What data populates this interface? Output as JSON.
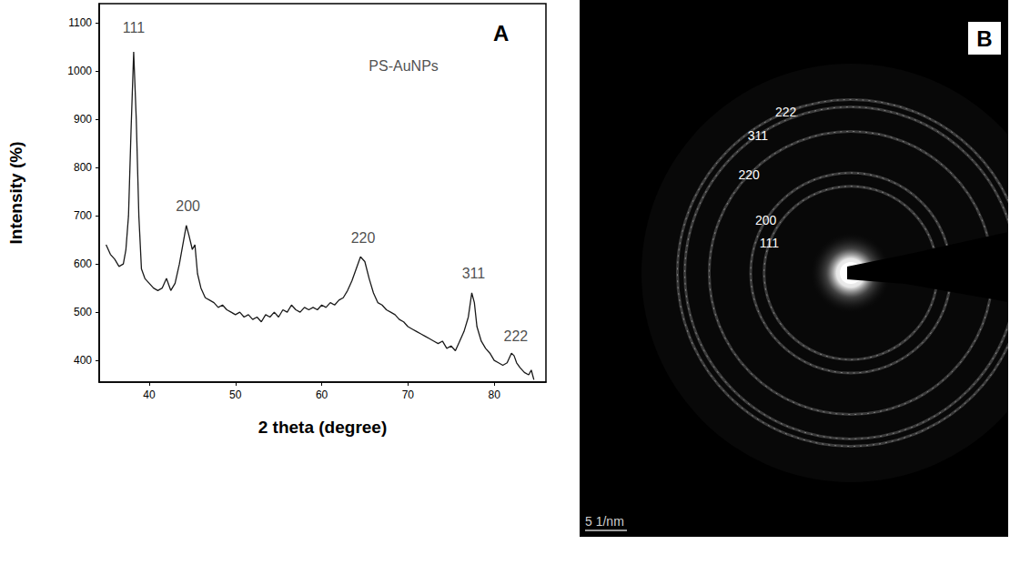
{
  "chart_data": {
    "type": "line",
    "panel_label": "A",
    "x_label": "2 theta (degree)",
    "y_label": "Intensity (%)",
    "x": [
      35,
      35.5,
      36,
      36.5,
      37,
      37.3,
      37.6,
      37.9,
      38.2,
      38.5,
      38.8,
      39.1,
      39.5,
      40,
      40.5,
      41,
      41.5,
      42,
      42.5,
      43,
      43.5,
      44,
      44.3,
      44.6,
      45,
      45.3,
      45.6,
      46,
      46.5,
      47,
      47.5,
      48,
      48.5,
      49,
      49.5,
      50,
      50.5,
      51,
      51.5,
      52,
      52.5,
      53,
      53.5,
      54,
      54.5,
      55,
      55.5,
      56,
      56.5,
      57,
      57.5,
      58,
      58.5,
      59,
      59.5,
      60,
      60.5,
      61,
      61.5,
      62,
      62.5,
      63,
      63.5,
      64,
      64.5,
      65,
      65.5,
      66,
      66.5,
      67,
      67.5,
      68,
      68.5,
      69,
      69.5,
      70,
      70.5,
      71,
      71.5,
      72,
      72.5,
      73,
      73.5,
      74,
      74.5,
      75,
      75.5,
      76,
      76.5,
      77,
      77.4,
      77.7,
      78,
      78.5,
      79,
      79.5,
      80,
      80.5,
      81,
      81.5,
      82,
      82.3,
      82.6,
      83,
      83.5,
      84,
      84.3,
      84.6
    ],
    "values": [
      640,
      620,
      610,
      595,
      600,
      630,
      700,
      880,
      1040,
      900,
      700,
      590,
      570,
      560,
      550,
      545,
      550,
      570,
      545,
      560,
      600,
      650,
      680,
      660,
      630,
      640,
      580,
      550,
      530,
      525,
      520,
      510,
      515,
      505,
      500,
      495,
      500,
      490,
      495,
      485,
      490,
      480,
      495,
      490,
      500,
      490,
      505,
      500,
      515,
      505,
      500,
      510,
      505,
      510,
      505,
      515,
      510,
      520,
      515,
      525,
      530,
      545,
      565,
      590,
      615,
      605,
      570,
      540,
      520,
      515,
      505,
      500,
      495,
      485,
      480,
      470,
      465,
      460,
      455,
      450,
      445,
      440,
      435,
      440,
      425,
      430,
      420,
      440,
      460,
      490,
      540,
      520,
      470,
      440,
      425,
      415,
      400,
      395,
      390,
      395,
      415,
      410,
      395,
      385,
      375,
      370,
      380,
      360
    ],
    "color": "#1a1a1a",
    "xlim": [
      34.2,
      86
    ],
    "xticks": [
      40,
      50,
      60,
      70,
      80
    ],
    "ylim": [
      355,
      1140
    ],
    "yticks": [
      400,
      500,
      600,
      700,
      800,
      900,
      1000,
      1100
    ],
    "grid": false,
    "annotations": [
      {
        "text": "PS-AuNPs",
        "x": 69.5,
        "y": 1010
      },
      {
        "text": "111",
        "x": 38.2,
        "y": 1090
      },
      {
        "text": "200",
        "x": 44.5,
        "y": 720
      },
      {
        "text": "220",
        "x": 64.8,
        "y": 655
      },
      {
        "text": "311",
        "x": 77.6,
        "y": 580
      },
      {
        "text": "222",
        "x": 82.5,
        "y": 450
      }
    ]
  },
  "diffraction_pattern": {
    "panel_label": "B",
    "ring_labels": [
      "222",
      "311",
      "220",
      "200",
      "111"
    ],
    "scale_bar": "5 1/nm"
  }
}
